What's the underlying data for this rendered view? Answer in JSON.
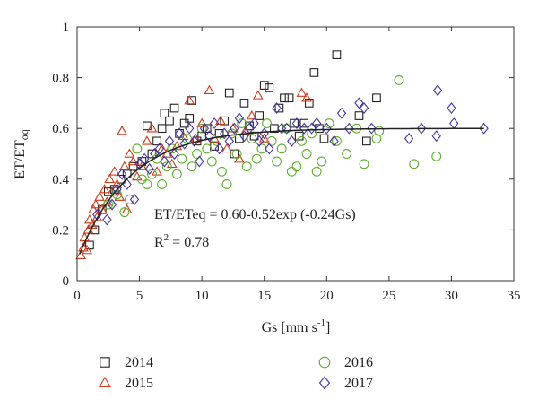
{
  "chart_data": {
    "type": "scatter",
    "xlabel": "Gs [mm s",
    "xlabel_sup": "-1",
    "xlabel_close": "]",
    "ylabel": "ET/ET",
    "ylabel_sub": "oq",
    "xlim": [
      0,
      35
    ],
    "ylim": [
      0,
      1
    ],
    "xticks": [
      0,
      5,
      10,
      15,
      20,
      25,
      30,
      35
    ],
    "yticks": [
      0,
      0.2,
      0.4,
      0.6,
      0.8,
      1
    ],
    "ytick_labels": [
      "0",
      "0.2",
      "0.4",
      "0.6",
      "0.8",
      "1"
    ],
    "grid": false,
    "equation": "ET/ETeq = 0.60-0.52exp (-0.24Gs)",
    "r2_prefix": "R",
    "r2_sup": "2",
    "r2_suffix": " = 0.78",
    "fit": {
      "a": 0.6,
      "b": 0.52,
      "k": 0.24,
      "x_range": [
        0.2,
        32.6
      ],
      "color": "#222222"
    },
    "legend_position": "bottom",
    "series": [
      {
        "name": "2014",
        "marker": "square",
        "color": "#222222",
        "points": [
          [
            1.0,
            0.14
          ],
          [
            1.4,
            0.2
          ],
          [
            2.0,
            0.28
          ],
          [
            2.5,
            0.35
          ],
          [
            3.0,
            0.36
          ],
          [
            3.5,
            0.4
          ],
          [
            4.0,
            0.42
          ],
          [
            4.5,
            0.45
          ],
          [
            5.2,
            0.47
          ],
          [
            5.6,
            0.61
          ],
          [
            6.0,
            0.5
          ],
          [
            6.4,
            0.55
          ],
          [
            6.8,
            0.6
          ],
          [
            7.0,
            0.66
          ],
          [
            7.4,
            0.63
          ],
          [
            7.8,
            0.68
          ],
          [
            8.2,
            0.58
          ],
          [
            8.6,
            0.62
          ],
          [
            9.0,
            0.64
          ],
          [
            9.2,
            0.71
          ],
          [
            9.6,
            0.55
          ],
          [
            10.0,
            0.57
          ],
          [
            10.4,
            0.6
          ],
          [
            11.0,
            0.53
          ],
          [
            11.4,
            0.58
          ],
          [
            11.8,
            0.63
          ],
          [
            12.2,
            0.74
          ],
          [
            12.6,
            0.5
          ],
          [
            13.0,
            0.56
          ],
          [
            13.4,
            0.7
          ],
          [
            13.8,
            0.61
          ],
          [
            14.2,
            0.57
          ],
          [
            14.6,
            0.65
          ],
          [
            15.0,
            0.77
          ],
          [
            15.4,
            0.76
          ],
          [
            15.8,
            0.6
          ],
          [
            16.2,
            0.68
          ],
          [
            16.6,
            0.72
          ],
          [
            17.0,
            0.72
          ],
          [
            17.4,
            0.62
          ],
          [
            17.8,
            0.57
          ],
          [
            18.2,
            0.62
          ],
          [
            18.6,
            0.7
          ],
          [
            19.0,
            0.82
          ],
          [
            19.4,
            0.6
          ],
          [
            19.8,
            0.56
          ],
          [
            20.8,
            0.89
          ],
          [
            22.6,
            0.65
          ],
          [
            23.2,
            0.55
          ],
          [
            24.0,
            0.72
          ]
        ]
      },
      {
        "name": "2015",
        "marker": "triangle",
        "color": "#cc3a1a",
        "points": [
          [
            0.3,
            0.1
          ],
          [
            0.5,
            0.13
          ],
          [
            0.6,
            0.17
          ],
          [
            0.8,
            0.12
          ],
          [
            0.9,
            0.2
          ],
          [
            1.0,
            0.24
          ],
          [
            1.2,
            0.22
          ],
          [
            1.3,
            0.28
          ],
          [
            1.5,
            0.3
          ],
          [
            1.6,
            0.25
          ],
          [
            1.8,
            0.33
          ],
          [
            2.0,
            0.28
          ],
          [
            2.2,
            0.36
          ],
          [
            2.4,
            0.31
          ],
          [
            2.6,
            0.4
          ],
          [
            2.8,
            0.35
          ],
          [
            3.0,
            0.43
          ],
          [
            3.2,
            0.38
          ],
          [
            3.4,
            0.33
          ],
          [
            3.6,
            0.59
          ],
          [
            3.8,
            0.45
          ],
          [
            4.0,
            0.28
          ],
          [
            4.2,
            0.5
          ],
          [
            4.5,
            0.47
          ],
          [
            4.8,
            0.41
          ],
          [
            5.2,
            0.45
          ],
          [
            5.6,
            0.55
          ],
          [
            6.0,
            0.6
          ],
          [
            6.4,
            0.43
          ],
          [
            6.8,
            0.52
          ],
          [
            7.2,
            0.5
          ],
          [
            7.6,
            0.46
          ],
          [
            8.0,
            0.53
          ],
          [
            8.5,
            0.57
          ],
          [
            9.0,
            0.71
          ],
          [
            9.5,
            0.56
          ],
          [
            10.0,
            0.62
          ],
          [
            10.6,
            0.75
          ],
          [
            11.0,
            0.56
          ],
          [
            11.5,
            0.63
          ],
          [
            12.0,
            0.52
          ],
          [
            12.5,
            0.6
          ],
          [
            13.0,
            0.48
          ],
          [
            13.5,
            0.59
          ],
          [
            14.0,
            0.65
          ],
          [
            14.5,
            0.73
          ],
          [
            15.0,
            0.56
          ],
          [
            18.0,
            0.74
          ],
          [
            18.4,
            0.72
          ]
        ]
      },
      {
        "name": "2016",
        "marker": "circle",
        "color": "#5fae30",
        "points": [
          [
            2.5,
            0.3
          ],
          [
            3.2,
            0.34
          ],
          [
            3.8,
            0.27
          ],
          [
            4.2,
            0.32
          ],
          [
            4.8,
            0.52
          ],
          [
            5.2,
            0.4
          ],
          [
            5.6,
            0.38
          ],
          [
            6.0,
            0.42
          ],
          [
            6.4,
            0.48
          ],
          [
            6.8,
            0.38
          ],
          [
            7.2,
            0.45
          ],
          [
            7.6,
            0.52
          ],
          [
            8.0,
            0.42
          ],
          [
            8.4,
            0.48
          ],
          [
            8.8,
            0.56
          ],
          [
            9.2,
            0.45
          ],
          [
            9.6,
            0.5
          ],
          [
            10.0,
            0.6
          ],
          [
            10.4,
            0.52
          ],
          [
            10.8,
            0.47
          ],
          [
            11.2,
            0.55
          ],
          [
            11.6,
            0.43
          ],
          [
            12.0,
            0.38
          ],
          [
            12.4,
            0.58
          ],
          [
            12.8,
            0.5
          ],
          [
            13.2,
            0.62
          ],
          [
            13.6,
            0.45
          ],
          [
            14.0,
            0.56
          ],
          [
            14.4,
            0.48
          ],
          [
            14.8,
            0.52
          ],
          [
            15.2,
            0.62
          ],
          [
            15.6,
            0.55
          ],
          [
            16.0,
            0.47
          ],
          [
            16.4,
            0.52
          ],
          [
            16.8,
            0.6
          ],
          [
            17.2,
            0.43
          ],
          [
            17.6,
            0.45
          ],
          [
            18.0,
            0.55
          ],
          [
            18.4,
            0.5
          ],
          [
            18.8,
            0.58
          ],
          [
            19.2,
            0.43
          ],
          [
            19.6,
            0.47
          ],
          [
            20.2,
            0.62
          ],
          [
            20.8,
            0.55
          ],
          [
            21.6,
            0.5
          ],
          [
            22.4,
            0.6
          ],
          [
            23.0,
            0.46
          ],
          [
            24.0,
            0.56
          ],
          [
            24.2,
            0.59
          ],
          [
            25.8,
            0.79
          ],
          [
            27.0,
            0.46
          ],
          [
            28.8,
            0.49
          ]
        ]
      },
      {
        "name": "2017",
        "marker": "diamond",
        "color": "#4433a0",
        "points": [
          [
            1.6,
            0.26
          ],
          [
            2.4,
            0.24
          ],
          [
            2.8,
            0.3
          ],
          [
            3.2,
            0.36
          ],
          [
            3.6,
            0.42
          ],
          [
            4.0,
            0.38
          ],
          [
            4.6,
            0.32
          ],
          [
            5.0,
            0.46
          ],
          [
            5.4,
            0.48
          ],
          [
            5.8,
            0.44
          ],
          [
            6.2,
            0.5
          ],
          [
            6.6,
            0.52
          ],
          [
            7.0,
            0.47
          ],
          [
            7.4,
            0.55
          ],
          [
            7.8,
            0.5
          ],
          [
            8.2,
            0.58
          ],
          [
            8.6,
            0.54
          ],
          [
            9.0,
            0.6
          ],
          [
            9.4,
            0.55
          ],
          [
            9.8,
            0.47
          ],
          [
            10.2,
            0.6
          ],
          [
            10.6,
            0.57
          ],
          [
            11.0,
            0.62
          ],
          [
            11.4,
            0.52
          ],
          [
            11.8,
            0.58
          ],
          [
            12.2,
            0.55
          ],
          [
            12.6,
            0.6
          ],
          [
            13.0,
            0.64
          ],
          [
            13.4,
            0.57
          ],
          [
            13.8,
            0.6
          ],
          [
            14.2,
            0.62
          ],
          [
            14.6,
            0.55
          ],
          [
            15.0,
            0.58
          ],
          [
            15.4,
            0.52
          ],
          [
            16.0,
            0.68
          ],
          [
            16.4,
            0.6
          ],
          [
            16.8,
            0.6
          ],
          [
            17.2,
            0.55
          ],
          [
            17.6,
            0.62
          ],
          [
            18.2,
            0.6
          ],
          [
            18.8,
            0.6
          ],
          [
            19.2,
            0.62
          ],
          [
            20.0,
            0.6
          ],
          [
            20.6,
            0.55
          ],
          [
            21.2,
            0.66
          ],
          [
            21.8,
            0.6
          ],
          [
            22.6,
            0.7
          ],
          [
            23.0,
            0.68
          ],
          [
            23.6,
            0.6
          ],
          [
            26.6,
            0.56
          ],
          [
            27.6,
            0.6
          ],
          [
            28.8,
            0.57
          ],
          [
            28.9,
            0.75
          ],
          [
            30.0,
            0.68
          ],
          [
            30.2,
            0.62
          ],
          [
            32.6,
            0.6
          ]
        ]
      }
    ]
  }
}
